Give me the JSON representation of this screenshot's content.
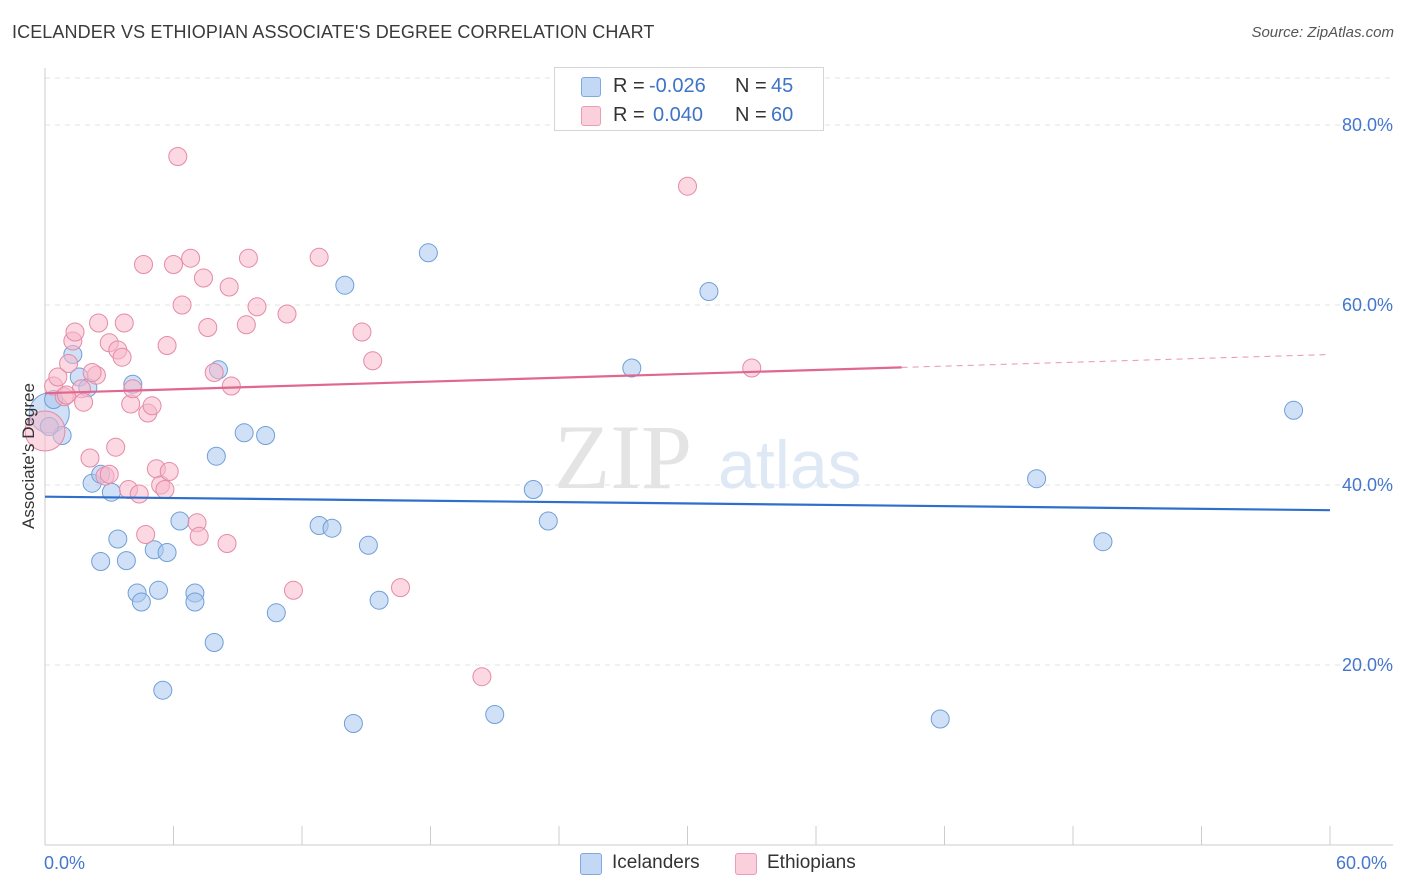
{
  "header": {
    "title": "ICELANDER VS ETHIOPIAN ASSOCIATE'S DEGREE CORRELATION CHART",
    "source": "Source: ZipAtlas.com"
  },
  "watermark": {
    "zip": "ZIP",
    "atlas": "atlas"
  },
  "legend": {
    "r_label": "R =",
    "n_label": "N =",
    "rows": [
      {
        "r": "-0.026",
        "n": "45",
        "color": "#a9c8f0"
      },
      {
        "r": "0.040",
        "n": "60",
        "color": "#f7b8cb"
      }
    ]
  },
  "bottom_legend": {
    "icelanders": "Icelanders",
    "ethiopians": "Ethiopians"
  },
  "chart_data": {
    "type": "scatter",
    "title": "ICELANDER VS ETHIOPIAN ASSOCIATE'S DEGREE CORRELATION CHART",
    "xlabel": "",
    "ylabel": "Associate's Degree",
    "xlim": [
      0,
      60
    ],
    "ylim": [
      0,
      85
    ],
    "x_tick_labels": [
      "0.0%",
      "60.0%"
    ],
    "y_ticks": [
      20,
      40,
      60,
      80
    ],
    "y_tick_labels": [
      "20.0%",
      "40.0%",
      "60.0%",
      "80.0%"
    ],
    "grid": true,
    "legend_position": "top-center",
    "series": [
      {
        "name": "Icelanders",
        "color": "#a9c8f0",
        "stroke": "#6f9fd8",
        "trend_color": "#2f6fcc",
        "trend": {
          "x0": 0,
          "y0": 38.7,
          "x1": 60,
          "y1": 37.2,
          "solid_until": 60
        },
        "points": [
          [
            0.2,
            48.0,
            20
          ],
          [
            0.4,
            49.5,
            9
          ],
          [
            0.8,
            45.5,
            9
          ],
          [
            1.3,
            54.5,
            9
          ],
          [
            1.6,
            52.0,
            9
          ],
          [
            2.0,
            50.8,
            9
          ],
          [
            2.2,
            40.2,
            9
          ],
          [
            2.6,
            41.2,
            9
          ],
          [
            3.1,
            39.2,
            9
          ],
          [
            3.4,
            34.0,
            9
          ],
          [
            2.6,
            31.5,
            9
          ],
          [
            3.8,
            31.6,
            9
          ],
          [
            4.1,
            51.2,
            9
          ],
          [
            4.3,
            28.0,
            9
          ],
          [
            4.5,
            27.0,
            9
          ],
          [
            5.1,
            32.8,
            9
          ],
          [
            5.3,
            28.3,
            9
          ],
          [
            5.5,
            17.2,
            9
          ],
          [
            5.7,
            32.5,
            9
          ],
          [
            6.3,
            36.0,
            9
          ],
          [
            7.0,
            28.0,
            9
          ],
          [
            7.0,
            27.0,
            9
          ],
          [
            7.9,
            22.5,
            9
          ],
          [
            8.0,
            43.2,
            9
          ],
          [
            8.1,
            52.8,
            9
          ],
          [
            9.3,
            45.8,
            9
          ],
          [
            10.3,
            45.5,
            9
          ],
          [
            10.8,
            25.8,
            9
          ],
          [
            12.8,
            35.5,
            9
          ],
          [
            13.4,
            35.2,
            9
          ],
          [
            14.0,
            62.2,
            9
          ],
          [
            14.4,
            13.5,
            9
          ],
          [
            15.1,
            33.3,
            9
          ],
          [
            15.6,
            27.2,
            9
          ],
          [
            17.9,
            65.8,
            9
          ],
          [
            21.0,
            14.5,
            9
          ],
          [
            22.8,
            39.5,
            9
          ],
          [
            23.5,
            36.0,
            9
          ],
          [
            27.4,
            53.0,
            9
          ],
          [
            31.0,
            61.5,
            9
          ],
          [
            41.8,
            14.0,
            9
          ],
          [
            46.3,
            40.7,
            9
          ],
          [
            49.4,
            33.7,
            9
          ],
          [
            58.3,
            48.3,
            9
          ],
          [
            0.2,
            46.5,
            9
          ]
        ]
      },
      {
        "name": "Ethiopians",
        "color": "#f7b8cb",
        "stroke": "#e58aa8",
        "trend_color": "#e0678e",
        "trend": {
          "x0": 0,
          "y0": 50.2,
          "x1": 60,
          "y1": 54.5,
          "solid_until": 40
        },
        "points": [
          [
            0.0,
            46.0,
            20
          ],
          [
            0.4,
            51.0,
            9
          ],
          [
            0.6,
            52.0,
            9
          ],
          [
            0.9,
            49.8,
            9
          ],
          [
            1.1,
            53.5,
            9
          ],
          [
            1.3,
            56.0,
            9
          ],
          [
            1.4,
            57.0,
            9
          ],
          [
            1.7,
            50.7,
            9
          ],
          [
            1.8,
            49.2,
            9
          ],
          [
            2.1,
            43.0,
            9
          ],
          [
            2.4,
            52.2,
            9
          ],
          [
            2.5,
            58.0,
            9
          ],
          [
            2.8,
            41.0,
            9
          ],
          [
            3.0,
            41.2,
            9
          ],
          [
            3.0,
            55.8,
            9
          ],
          [
            3.3,
            44.2,
            9
          ],
          [
            3.4,
            55.0,
            9
          ],
          [
            3.6,
            54.2,
            9
          ],
          [
            3.7,
            58.0,
            9
          ],
          [
            3.9,
            39.5,
            9
          ],
          [
            4.0,
            49.0,
            9
          ],
          [
            4.1,
            50.7,
            9
          ],
          [
            4.4,
            39.0,
            9
          ],
          [
            4.6,
            64.5,
            9
          ],
          [
            4.7,
            34.5,
            9
          ],
          [
            4.8,
            48.0,
            9
          ],
          [
            5.0,
            48.8,
            9
          ],
          [
            5.2,
            41.8,
            9
          ],
          [
            5.4,
            40.0,
            9
          ],
          [
            5.6,
            39.5,
            9
          ],
          [
            5.7,
            55.5,
            9
          ],
          [
            5.8,
            41.5,
            9
          ],
          [
            6.0,
            64.5,
            9
          ],
          [
            6.2,
            76.5,
            9
          ],
          [
            6.4,
            60.0,
            9
          ],
          [
            6.8,
            65.2,
            9
          ],
          [
            7.1,
            35.8,
            9
          ],
          [
            7.2,
            34.3,
            9
          ],
          [
            7.4,
            63.0,
            9
          ],
          [
            7.6,
            57.5,
            9
          ],
          [
            7.9,
            52.5,
            9
          ],
          [
            8.5,
            33.5,
            9
          ],
          [
            8.6,
            62.0,
            9
          ],
          [
            8.7,
            51.0,
            9
          ],
          [
            9.4,
            57.8,
            9
          ],
          [
            9.5,
            65.2,
            9
          ],
          [
            9.9,
            59.8,
            9
          ],
          [
            11.3,
            59.0,
            9
          ],
          [
            11.6,
            28.3,
            9
          ],
          [
            12.8,
            65.3,
            9
          ],
          [
            14.8,
            57.0,
            9
          ],
          [
            15.3,
            53.8,
            9
          ],
          [
            16.6,
            28.6,
            9
          ],
          [
            20.4,
            18.7,
            9
          ],
          [
            30.0,
            73.2,
            9
          ],
          [
            33.0,
            53.0,
            9
          ],
          [
            2.2,
            52.5,
            9
          ],
          [
            1.0,
            50.0,
            9
          ],
          [
            5.0,
            65.0,
            0
          ],
          [
            3.0,
            47.0,
            0
          ]
        ]
      }
    ]
  }
}
